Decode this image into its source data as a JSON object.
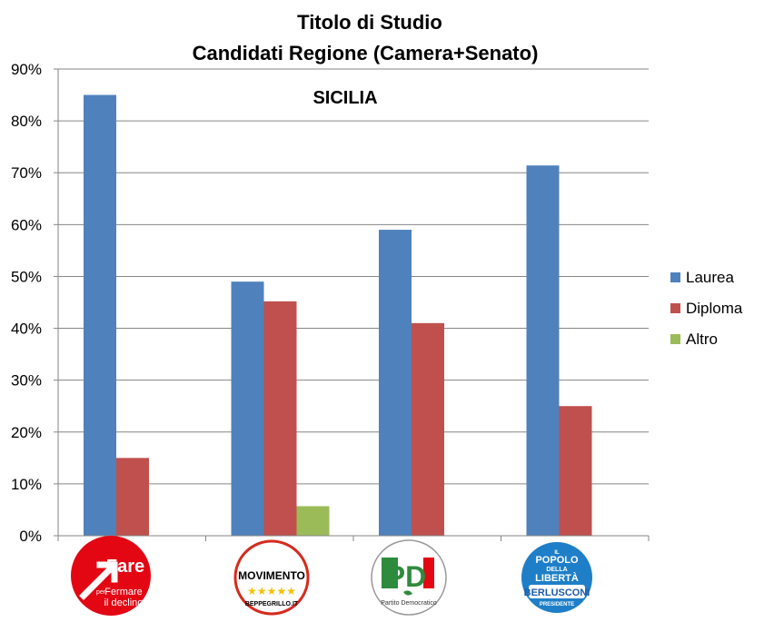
{
  "chart_data": {
    "type": "bar",
    "title_line1": "Titolo di Studio",
    "title_line2": "Candidati Regione (Camera+Senato)",
    "subtitle": "SICILIA",
    "categories": [
      "Fare per Fermare il declino",
      "MoVimento 5 Stelle",
      "Partito Democratico",
      "Il Popolo della Libertà"
    ],
    "series": [
      {
        "name": "Laurea",
        "color": "#4F81BD",
        "values": [
          85,
          49,
          59,
          71.4
        ]
      },
      {
        "name": "Diploma",
        "color": "#C0504D",
        "values": [
          15,
          45.2,
          41,
          25
        ]
      },
      {
        "name": "Altro",
        "color": "#9BBB59",
        "values": [
          0,
          5.7,
          0,
          0
        ]
      }
    ],
    "ylim": [
      0,
      90
    ],
    "yticks": [
      "0%",
      "10%",
      "20%",
      "30%",
      "40%",
      "50%",
      "60%",
      "70%",
      "80%",
      "90%"
    ],
    "grid": true,
    "legend_position": "right"
  },
  "logos": {
    "fare": {
      "main": "Fare",
      "small": "per",
      "line1": "Fermare",
      "line2": "il declino",
      "color": "#E30613"
    },
    "m5s": {
      "main": "MOVIMENTO",
      "stars": "★★★★★",
      "site": "BEPPEGRILLO.IT",
      "color": "#D52B1E"
    },
    "pd": {
      "main": "PD",
      "sub": "Partito Democratico",
      "green": "#2E8B3D",
      "red": "#E30613"
    },
    "pdl": {
      "line1": "IL",
      "line2": "POPOLO",
      "line3": "DELLA",
      "line4": "LIBERTÀ",
      "name": "BERLUSCONI",
      "sub": "PRESIDENTE",
      "color": "#1E7FC8"
    }
  }
}
